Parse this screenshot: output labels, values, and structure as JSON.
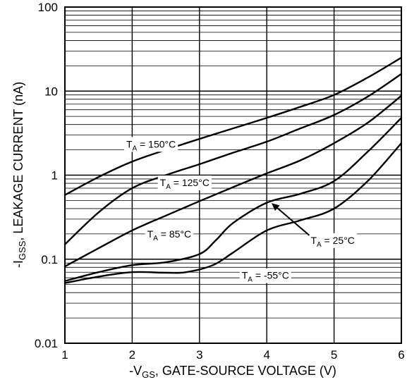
{
  "chart_data": {
    "type": "line",
    "x_scale": "linear",
    "y_scale": "log",
    "xlim": [
      1,
      6
    ],
    "ylim": [
      0.01,
      100
    ],
    "grid": true,
    "x_ticks": [
      "1",
      "2",
      "3",
      "4",
      "5",
      "6"
    ],
    "y_ticks": [
      "0.01",
      "0.1",
      "1",
      "10",
      "100"
    ],
    "xlabel": {
      "prefix": "-V",
      "sub": "GS",
      "suffix": ", GATE-SOURCE VOLTAGE (V)"
    },
    "ylabel": {
      "prefix": "-I",
      "sub": "GSS",
      "suffix": ", LEAKAGE CURRENT (nA)"
    },
    "series": [
      {
        "name": "T_A = 150°C",
        "label_parts": {
          "prefix": "T",
          "sub": "A",
          "suffix": " = 150°C"
        },
        "x": [
          1,
          1.5,
          2,
          2.5,
          3,
          3.5,
          4,
          4.5,
          5,
          5.5,
          6
        ],
        "y": [
          0.58,
          0.95,
          1.45,
          2.0,
          2.7,
          3.6,
          4.8,
          6.5,
          9.0,
          14.5,
          25
        ]
      },
      {
        "name": "T_A = 125°C",
        "label_parts": {
          "prefix": "T",
          "sub": "A",
          "suffix": " = 125°C"
        },
        "x": [
          1,
          1.5,
          2,
          2.5,
          3,
          3.5,
          4,
          4.5,
          5,
          5.5,
          6
        ],
        "y": [
          0.15,
          0.36,
          0.7,
          1.0,
          1.35,
          1.85,
          2.5,
          3.6,
          5.2,
          8.6,
          16
        ]
      },
      {
        "name": "T_A = 85°C",
        "label_parts": {
          "prefix": "T",
          "sub": "A",
          "suffix": " = 85°C"
        },
        "x": [
          1,
          1.5,
          2,
          2.5,
          3,
          3.5,
          4,
          4.5,
          5,
          5.5,
          6
        ],
        "y": [
          0.082,
          0.135,
          0.22,
          0.33,
          0.49,
          0.72,
          1.05,
          1.5,
          2.4,
          4.2,
          8.8
        ]
      },
      {
        "name": "T_A = 25°C",
        "label_parts": {
          "prefix": "T",
          "sub": "A",
          "suffix": " = 25°C"
        },
        "x": [
          1,
          1.5,
          2,
          2.5,
          3,
          3.25,
          3.5,
          4,
          4.5,
          5,
          5.5,
          6
        ],
        "y": [
          0.055,
          0.07,
          0.085,
          0.092,
          0.115,
          0.17,
          0.27,
          0.47,
          0.6,
          0.85,
          1.9,
          4.8
        ]
      },
      {
        "name": "T_A = -55°C",
        "label_parts": {
          "prefix": "T",
          "sub": "A",
          "suffix": " = -55°C"
        },
        "x": [
          1,
          1.5,
          2,
          2.5,
          2.8,
          3.2,
          3.5,
          4,
          4.5,
          5,
          5.5,
          6
        ],
        "y": [
          0.052,
          0.062,
          0.07,
          0.069,
          0.07,
          0.085,
          0.12,
          0.22,
          0.29,
          0.4,
          0.85,
          2.4
        ]
      }
    ],
    "annotations": [
      {
        "series": 0,
        "x": 2.28,
        "y": 2.3
      },
      {
        "series": 1,
        "x": 2.78,
        "y": 0.8
      },
      {
        "series": 2,
        "x": 2.55,
        "y": 0.195
      },
      {
        "series": 3,
        "x": 4.98,
        "y": 0.165,
        "arrow_to": [
          4.07,
          0.465
        ]
      },
      {
        "series": 4,
        "x": 3.98,
        "y": 0.063
      }
    ]
  }
}
